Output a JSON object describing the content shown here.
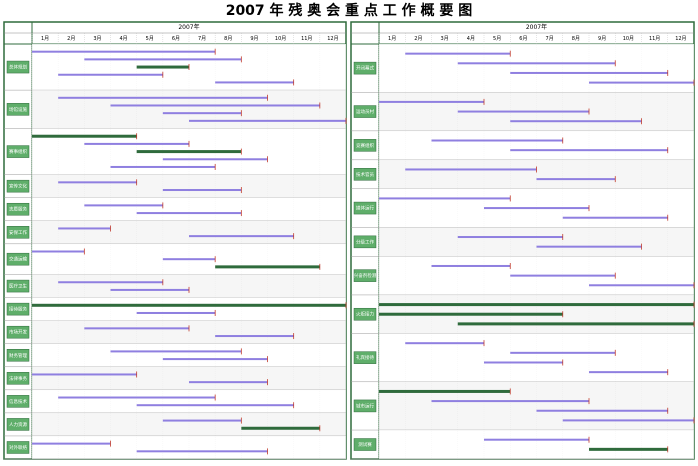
{
  "title": "2007 年 残 奥 会 重 点 工 作 概 要 图",
  "timeline": {
    "year": "2007年",
    "months": [
      "1月",
      "2月",
      "3月",
      "4月",
      "5月",
      "6月",
      "7月",
      "8月",
      "9月",
      "10月",
      "11月",
      "12月"
    ],
    "range": [
      1,
      13
    ]
  },
  "colors": {
    "plan": "#8f7fe0",
    "key": "#2f6b3c",
    "frame": "#2f6b3c",
    "label": "#5fae6a"
  },
  "panels": [
    {
      "sections": [
        {
          "label": "总体规划",
          "tasks": [
            [
              1,
              8,
              "plan"
            ],
            [
              3,
              9,
              "plan"
            ],
            [
              5,
              7,
              "key"
            ],
            [
              2,
              6,
              "plan"
            ],
            [
              8,
              11,
              "plan"
            ]
          ]
        },
        {
          "label": "场馆设施",
          "tasks": [
            [
              2,
              10,
              "plan"
            ],
            [
              4,
              12,
              "plan"
            ],
            [
              6,
              9,
              "plan"
            ],
            [
              7,
              13,
              "plan"
            ]
          ]
        },
        {
          "label": "赛事组织",
          "tasks": [
            [
              1,
              5,
              "key"
            ],
            [
              3,
              7,
              "plan"
            ],
            [
              5,
              9,
              "key"
            ],
            [
              6,
              10,
              "plan"
            ],
            [
              4,
              8,
              "plan"
            ]
          ]
        },
        {
          "label": "宣传文化",
          "tasks": [
            [
              2,
              5,
              "plan"
            ],
            [
              6,
              9,
              "plan"
            ]
          ]
        },
        {
          "label": "志愿服务",
          "tasks": [
            [
              3,
              6,
              "plan"
            ],
            [
              5,
              9,
              "plan"
            ]
          ]
        },
        {
          "label": "安保工作",
          "tasks": [
            [
              2,
              4,
              "plan"
            ],
            [
              7,
              11,
              "plan"
            ]
          ]
        },
        {
          "label": "交通运输",
          "tasks": [
            [
              1,
              3,
              "plan"
            ],
            [
              6,
              8,
              "plan"
            ],
            [
              8,
              12,
              "key"
            ]
          ]
        },
        {
          "label": "医疗卫生",
          "tasks": [
            [
              2,
              6,
              "plan"
            ],
            [
              4,
              7,
              "plan"
            ]
          ]
        },
        {
          "label": "接待服务",
          "tasks": [
            [
              1,
              13,
              "key"
            ],
            [
              5,
              8,
              "plan"
            ]
          ]
        },
        {
          "label": "市场开发",
          "tasks": [
            [
              3,
              7,
              "plan"
            ],
            [
              8,
              11,
              "plan"
            ]
          ]
        },
        {
          "label": "财务管理",
          "tasks": [
            [
              4,
              9,
              "plan"
            ],
            [
              6,
              10,
              "plan"
            ]
          ]
        },
        {
          "label": "法律事务",
          "tasks": [
            [
              1,
              5,
              "plan"
            ],
            [
              7,
              10,
              "plan"
            ]
          ]
        },
        {
          "label": "信息技术",
          "tasks": [
            [
              2,
              8,
              "plan"
            ],
            [
              5,
              11,
              "plan"
            ]
          ]
        },
        {
          "label": "人力资源",
          "tasks": [
            [
              6,
              9,
              "plan"
            ],
            [
              9,
              12,
              "key"
            ]
          ]
        },
        {
          "label": "对外联络",
          "tasks": [
            [
              1,
              4,
              "plan"
            ],
            [
              5,
              10,
              "plan"
            ]
          ]
        }
      ]
    },
    {
      "sections": [
        {
          "label": "开闭幕式",
          "tasks": [
            [
              2,
              6,
              "plan"
            ],
            [
              4,
              10,
              "plan"
            ],
            [
              6,
              12,
              "plan"
            ],
            [
              9,
              13,
              "plan"
            ]
          ]
        },
        {
          "label": "运动员村",
          "tasks": [
            [
              1,
              5,
              "plan"
            ],
            [
              4,
              9,
              "plan"
            ],
            [
              6,
              11,
              "plan"
            ]
          ]
        },
        {
          "label": "竞赛组织",
          "tasks": [
            [
              3,
              8,
              "plan"
            ],
            [
              6,
              12,
              "plan"
            ]
          ]
        },
        {
          "label": "技术官员",
          "tasks": [
            [
              2,
              7,
              "plan"
            ],
            [
              7,
              10,
              "plan"
            ]
          ]
        },
        {
          "label": "媒体运行",
          "tasks": [
            [
              1,
              6,
              "plan"
            ],
            [
              5,
              9,
              "plan"
            ],
            [
              8,
              12,
              "plan"
            ]
          ]
        },
        {
          "label": "分级工作",
          "tasks": [
            [
              4,
              8,
              "plan"
            ],
            [
              7,
              11,
              "plan"
            ]
          ]
        },
        {
          "label": "兴奋剂检测",
          "tasks": [
            [
              3,
              6,
              "plan"
            ],
            [
              6,
              10,
              "plan"
            ],
            [
              9,
              13,
              "plan"
            ]
          ]
        },
        {
          "label": "火炬接力",
          "tasks": [
            [
              1,
              13,
              "key"
            ],
            [
              1,
              8,
              "key"
            ],
            [
              4,
              13,
              "key"
            ]
          ]
        },
        {
          "label": "礼宾接待",
          "tasks": [
            [
              2,
              5,
              "plan"
            ],
            [
              6,
              10,
              "plan"
            ],
            [
              5,
              8,
              "plan"
            ],
            [
              9,
              12,
              "plan"
            ]
          ]
        },
        {
          "label": "城市运行",
          "tasks": [
            [
              1,
              6,
              "key"
            ],
            [
              3,
              9,
              "plan"
            ],
            [
              7,
              12,
              "plan"
            ],
            [
              8,
              13,
              "plan"
            ]
          ]
        },
        {
          "label": "测试赛",
          "tasks": [
            [
              5,
              9,
              "plan"
            ],
            [
              9,
              12,
              "key"
            ]
          ]
        }
      ]
    }
  ]
}
